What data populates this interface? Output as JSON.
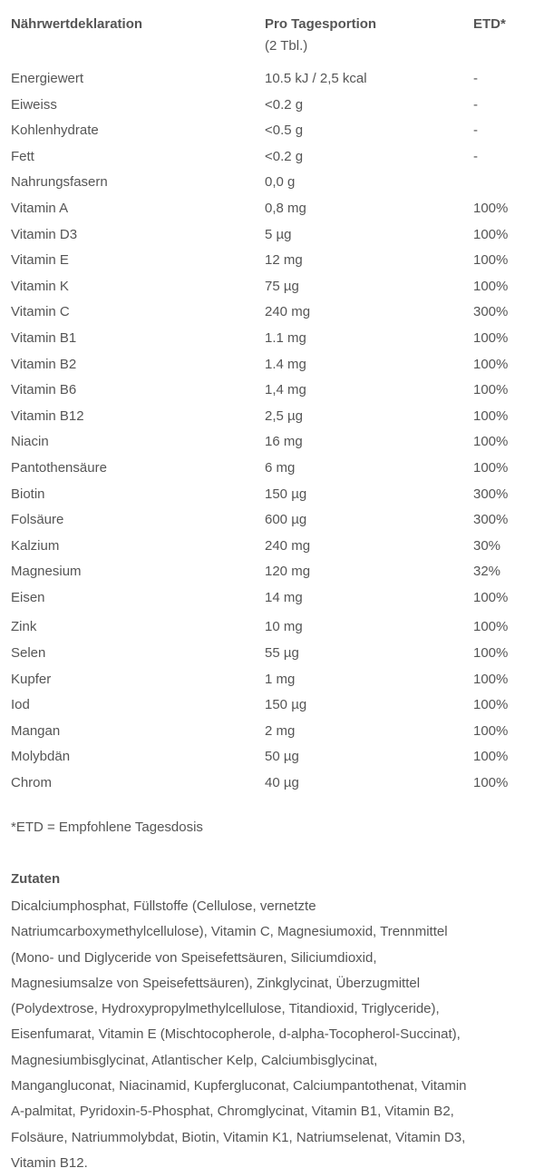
{
  "table": {
    "header": {
      "col1": "Nährwertdeklaration",
      "col2": "Pro Tagesportion",
      "col2_sub": "(2 Tbl.)",
      "col3": "ETD*"
    },
    "rows": [
      {
        "name": "Energiewert",
        "amount": "10.5 kJ / 2,5 kcal",
        "etd": "-"
      },
      {
        "name": "Eiweiss",
        "amount": "<0.2 g",
        "etd": "-"
      },
      {
        "name": "Kohlenhydrate",
        "amount": "<0.5 g",
        "etd": "-"
      },
      {
        "name": "Fett",
        "amount": "<0.2 g",
        "etd": "-"
      },
      {
        "name": "Nahrungsfasern",
        "amount": "0,0 g",
        "etd": ""
      },
      {
        "name": "Vitamin A",
        "amount": "0,8 mg",
        "etd": "100%"
      },
      {
        "name": "Vitamin D3",
        "amount": "5 µg",
        "etd": "100%"
      },
      {
        "name": "Vitamin E",
        "amount": "12 mg",
        "etd": "100%"
      },
      {
        "name": "Vitamin K",
        "amount": "75 µg",
        "etd": "100%"
      },
      {
        "name": "Vitamin C",
        "amount": "240 mg",
        "etd": "300%"
      },
      {
        "name": "Vitamin B1",
        "amount": "1.1 mg",
        "etd": "100%"
      },
      {
        "name": "Vitamin B2",
        "amount": "1.4 mg",
        "etd": "100%"
      },
      {
        "name": "Vitamin B6",
        "amount": "1,4 mg",
        "etd": "100%"
      },
      {
        "name": "Vitamin B12",
        "amount": "2,5 µg",
        "etd": "100%"
      },
      {
        "name": "Niacin",
        "amount": "16 mg",
        "etd": "100%"
      },
      {
        "name": "Pantothensäure",
        "amount": "6 mg",
        "etd": "100%"
      },
      {
        "name": "Biotin",
        "amount": "150 µg",
        "etd": "300%"
      },
      {
        "name": "Folsäure",
        "amount": "600 µg",
        "etd": "300%"
      },
      {
        "name": "Kalzium",
        "amount": "240 mg",
        "etd": "30%"
      },
      {
        "name": "Magnesium",
        "amount": "120 mg",
        "etd": "32%"
      },
      {
        "name": "Eisen",
        "amount": "14 mg",
        "etd": "100%"
      },
      {
        "name": "Zink",
        "amount": "10 mg",
        "etd": "100%"
      },
      {
        "name": "Selen",
        "amount": "55 µg",
        "etd": "100%"
      },
      {
        "name": "Kupfer",
        "amount": "1 mg",
        "etd": "100%"
      },
      {
        "name": "Iod",
        "amount": "150 µg",
        "etd": "100%"
      },
      {
        "name": "Mangan",
        "amount": "2 mg",
        "etd": "100%"
      },
      {
        "name": "Molybdän",
        "amount": "50 µg",
        "etd": "100%"
      },
      {
        "name": "Chrom",
        "amount": "40 µg",
        "etd": "100%"
      }
    ]
  },
  "footnote": "*ETD = Empfohlene Tagesdosis",
  "zutaten": {
    "title": "Zutaten",
    "lines": [
      "Dicalciumphosphat, Füllstoffe (Cellulose, vernetzte",
      "Natriumcarboxymethylcellulose), Vitamin C, Magnesiumoxid, Trennmittel",
      "(Mono- und Diglyceride von Speisefettsäuren, Siliciumdioxid,",
      "Magnesiumsalze von Speisefettsäuren), Zinkglycinat, Überzugmittel",
      "(Polydextrose, Hydroxypropylmethylcellulose, Titandioxid, Triglyceride),",
      "Eisenfumarat, Vitamin E (Mischtocopherole, d-alpha-Tocopherol-Succinat),",
      "Magnesiumbisglycinat, Atlantischer Kelp, Calciumbisglycinat,",
      "Mangangluconat, Niacinamid, Kupfergluconat, Calciumpantothenat, Vitamin",
      "A-palmitat, Pyridoxin-5-Phosphat, Chromglycinat, Vitamin B1, Vitamin B2,",
      "Folsäure, Natriummolybdat, Biotin, Vitamin K1, Natriumselenat, Vitamin D3,",
      "Vitamin B12."
    ]
  }
}
